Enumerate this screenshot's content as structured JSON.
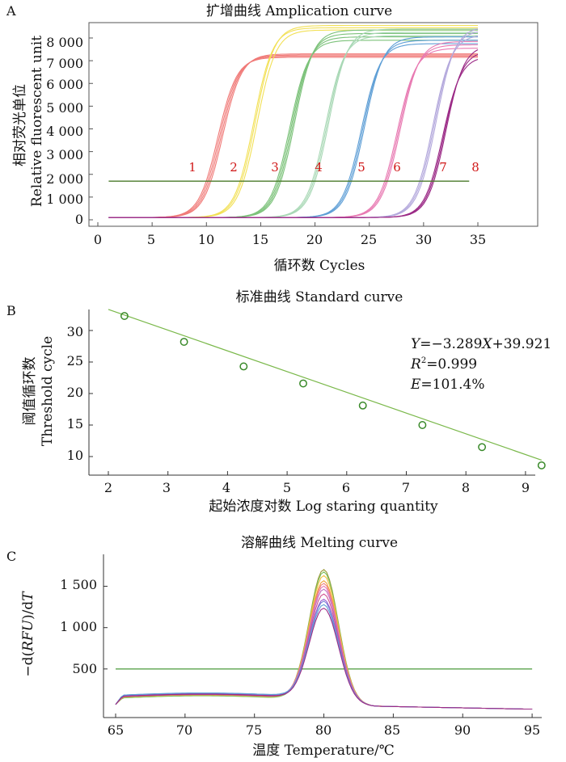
{
  "panels": {
    "A": {
      "letter": "A",
      "title": "扩增曲线 Amplication curve",
      "xlabel": "循环数 Cycles",
      "ylabel_cn": "相对荧光单位",
      "ylabel_en": "Relative fluorescent unit",
      "xticks": [
        "0",
        "5",
        "10",
        "15",
        "20",
        "25",
        "30",
        "35"
      ],
      "yticks": [
        "0",
        "1 000",
        "2 000",
        "3 000",
        "4 000",
        "5 000",
        "6 000",
        "7 000",
        "8 000"
      ],
      "curve_labels": [
        "1",
        "2",
        "3",
        "4",
        "5",
        "6",
        "7",
        "8"
      ]
    },
    "B": {
      "letter": "B",
      "title": "标准曲线 Standard curve",
      "xlabel": "起始浓度对数 Log staring quantity",
      "ylabel_cn": "阈值循环数",
      "ylabel_en": "Threshold cycle",
      "xticks": [
        "2",
        "3",
        "4",
        "5",
        "6",
        "7",
        "8",
        "9"
      ],
      "yticks": [
        "10",
        "15",
        "20",
        "25",
        "30"
      ],
      "eq_Y": "Y",
      "eq_mid": "=−3.289",
      "eq_X": "X",
      "eq_end": "+39.921",
      "r2_R": "R",
      "r2_sup": "2",
      "r2_val": "=0.999",
      "e_E": "E",
      "e_val": "=101.4%"
    },
    "C": {
      "letter": "C",
      "title": "溶解曲线 Melting curve",
      "xlabel": "温度 Temperature/℃",
      "ylabel_a": "−d(",
      "ylabel_b": "RFU",
      "ylabel_c": ")/d",
      "ylabel_d": "T",
      "xticks": [
        "65",
        "70",
        "75",
        "80",
        "85",
        "90",
        "95"
      ],
      "yticks": [
        "500",
        "1 000",
        "1 500"
      ]
    }
  },
  "chart_data": [
    {
      "type": "line",
      "title": "扩增曲线 Amplication curve",
      "xlabel": "循环数 Cycles",
      "ylabel": "相对荧光单位 Relative fluorescent unit",
      "xlim": [
        0,
        35
      ],
      "ylim": [
        -200,
        8800
      ],
      "x_start": 1,
      "threshold": 1700,
      "groups": [
        {
          "label": "1",
          "color": "#f07a78",
          "ct": 10.0,
          "plateau": [
            7050,
            7100,
            7150,
            7200
          ],
          "slope": 1.15
        },
        {
          "label": "2",
          "color": "#f2e055",
          "ct": 13.3,
          "plateau": [
            8350,
            8450,
            8250
          ],
          "slope": 1.15
        },
        {
          "label": "3",
          "color": "#7cc27a",
          "ct": 16.6,
          "plateau": [
            7800,
            7950,
            8100,
            8250
          ],
          "slope": 1.15
        },
        {
          "label": "4",
          "color": "#a8d8b5",
          "ct": 19.9,
          "plateau": [
            8000,
            8150,
            8300
          ],
          "slope": 1.15
        },
        {
          "label": "5",
          "color": "#5f9fd6",
          "ct": 23.2,
          "plateau": [
            7650,
            7800,
            7950
          ],
          "slope": 1.15
        },
        {
          "label": "6",
          "color": "#e87ab2",
          "ct": 26.5,
          "plateau": [
            7450,
            7600,
            7750
          ],
          "slope": 1.15
        },
        {
          "label": "7",
          "color": "#b3a8dc",
          "ct": 29.8,
          "plateau": [
            8050,
            8250,
            8400
          ],
          "slope": 1.15
        },
        {
          "label": "8",
          "color": "#9b2a86",
          "ct": 30.7,
          "plateau": [
            7100,
            7350,
            7600
          ],
          "slope": 1.2
        }
      ],
      "threshold_color": "#4a7a2a"
    },
    {
      "type": "scatter",
      "title": "标准曲线 Standard curve",
      "xlabel": "起始浓度对数 Log staring quantity",
      "ylabel": "阈值循环数 Threshold cycle",
      "xlim": [
        1.5,
        9.5
      ],
      "ylim": [
        7,
        33
      ],
      "points": [
        {
          "x": 2.27,
          "y": 32.3
        },
        {
          "x": 3.27,
          "y": 28.2
        },
        {
          "x": 4.27,
          "y": 24.3
        },
        {
          "x": 5.27,
          "y": 21.6
        },
        {
          "x": 6.27,
          "y": 18.1
        },
        {
          "x": 7.27,
          "y": 15.0
        },
        {
          "x": 8.27,
          "y": 11.5
        },
        {
          "x": 9.27,
          "y": 8.6
        }
      ],
      "fit": {
        "slope": -3.289,
        "intercept": 39.921,
        "x_from": 2.0,
        "x_to": 9.27
      },
      "r2": 0.999,
      "efficiency": "101.4%",
      "marker_color": "#3a8a2a",
      "line_color": "#7ab84a"
    },
    {
      "type": "line",
      "title": "溶解曲线 Melting curve",
      "xlabel": "温度 Temperature/℃",
      "ylabel": "−d(RFU)/dT",
      "xlim": [
        63.5,
        96
      ],
      "ylim": [
        -30,
        1850
      ],
      "x_range": [
        65,
        95
      ],
      "peak_x": 80.0,
      "threshold": 500,
      "threshold_color": "#4a9a3a",
      "series": [
        {
          "color": "#9b9a3a",
          "peak": 1750,
          "base": 155
        },
        {
          "color": "#7cbf5a",
          "peak": 1720,
          "base": 150
        },
        {
          "color": "#f0c040",
          "peak": 1680,
          "base": 160
        },
        {
          "color": "#f2a23a",
          "peak": 1620,
          "base": 165
        },
        {
          "color": "#f07a78",
          "peak": 1590,
          "base": 170
        },
        {
          "color": "#e87ab2",
          "peak": 1560,
          "base": 175
        },
        {
          "color": "#c070c0",
          "peak": 1520,
          "base": 170
        },
        {
          "color": "#d05090",
          "peak": 1460,
          "base": 165
        },
        {
          "color": "#9b5ad0",
          "peak": 1400,
          "base": 175
        },
        {
          "color": "#7a80d6",
          "peak": 1380,
          "base": 180
        },
        {
          "color": "#5f9fd6",
          "peak": 1340,
          "base": 185
        },
        {
          "color": "#9b2a86",
          "peak": 1290,
          "base": 170
        }
      ]
    }
  ]
}
